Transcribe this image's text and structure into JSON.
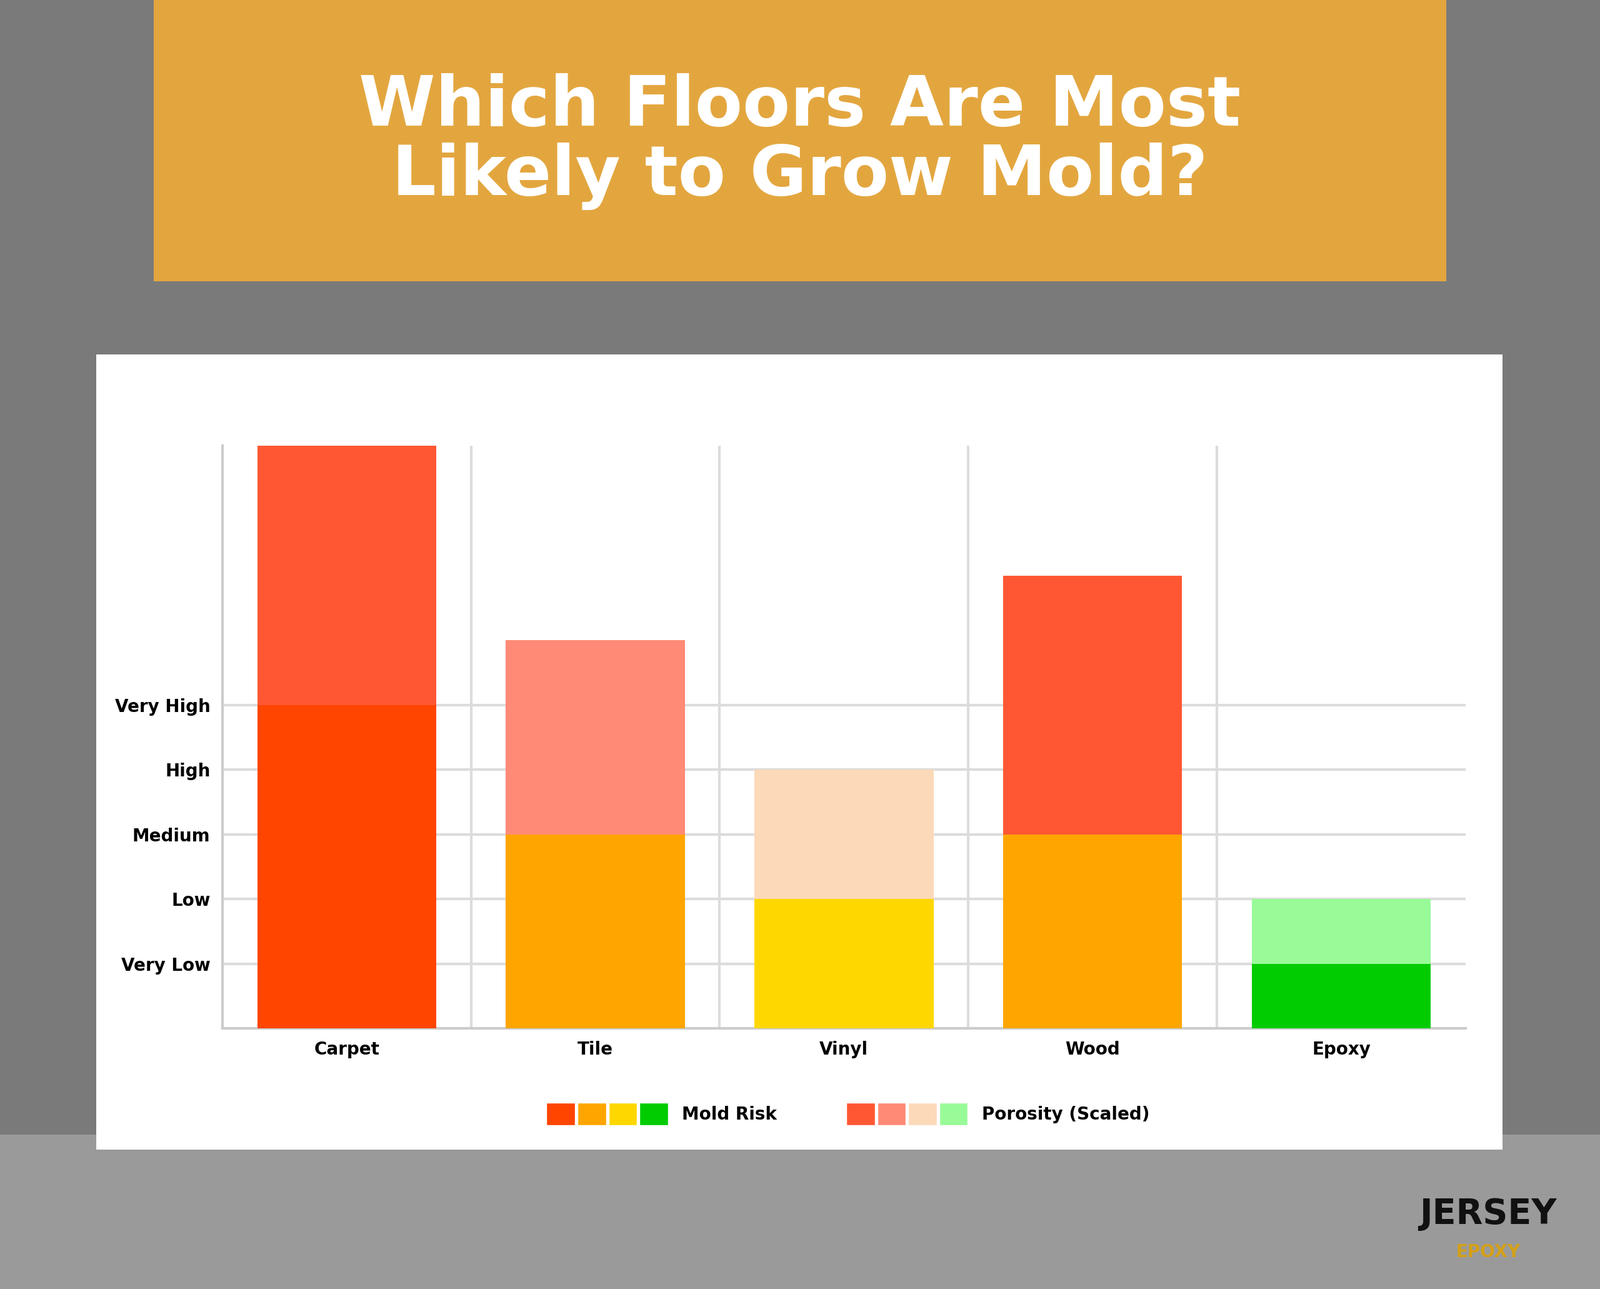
{
  "chart_data": {
    "type": "bar",
    "title": "Which Floors Are Most Likely to Grow Mold?",
    "categories": [
      "Carpet",
      "Tile",
      "Vinyl",
      "Wood",
      "Epoxy"
    ],
    "stacked": true,
    "series": [
      {
        "name": "Mold Risk",
        "values": [
          5,
          3,
          2,
          3,
          1
        ],
        "colors": [
          "#ff4500",
          "#ffa500",
          "#ffd700",
          "#ffa500",
          "#00cc00"
        ]
      },
      {
        "name": "Porosity (Scaled)",
        "values": [
          4,
          3,
          2,
          4,
          1
        ],
        "colors": [
          "#ff5733",
          "#ff8a75",
          "#fcd9b8",
          "#ff5733",
          "#98fb98"
        ]
      }
    ],
    "ylim": [
      0,
      9
    ],
    "yticks": [
      {
        "value": 1,
        "label": "Very Low"
      },
      {
        "value": 2,
        "label": "Low"
      },
      {
        "value": 3,
        "label": "Medium"
      },
      {
        "value": 4,
        "label": "High"
      },
      {
        "value": 5,
        "label": "Very High"
      }
    ],
    "grid": true,
    "legend": "lower center",
    "annotations": [
      "JERSEY",
      "EPOXY"
    ]
  }
}
